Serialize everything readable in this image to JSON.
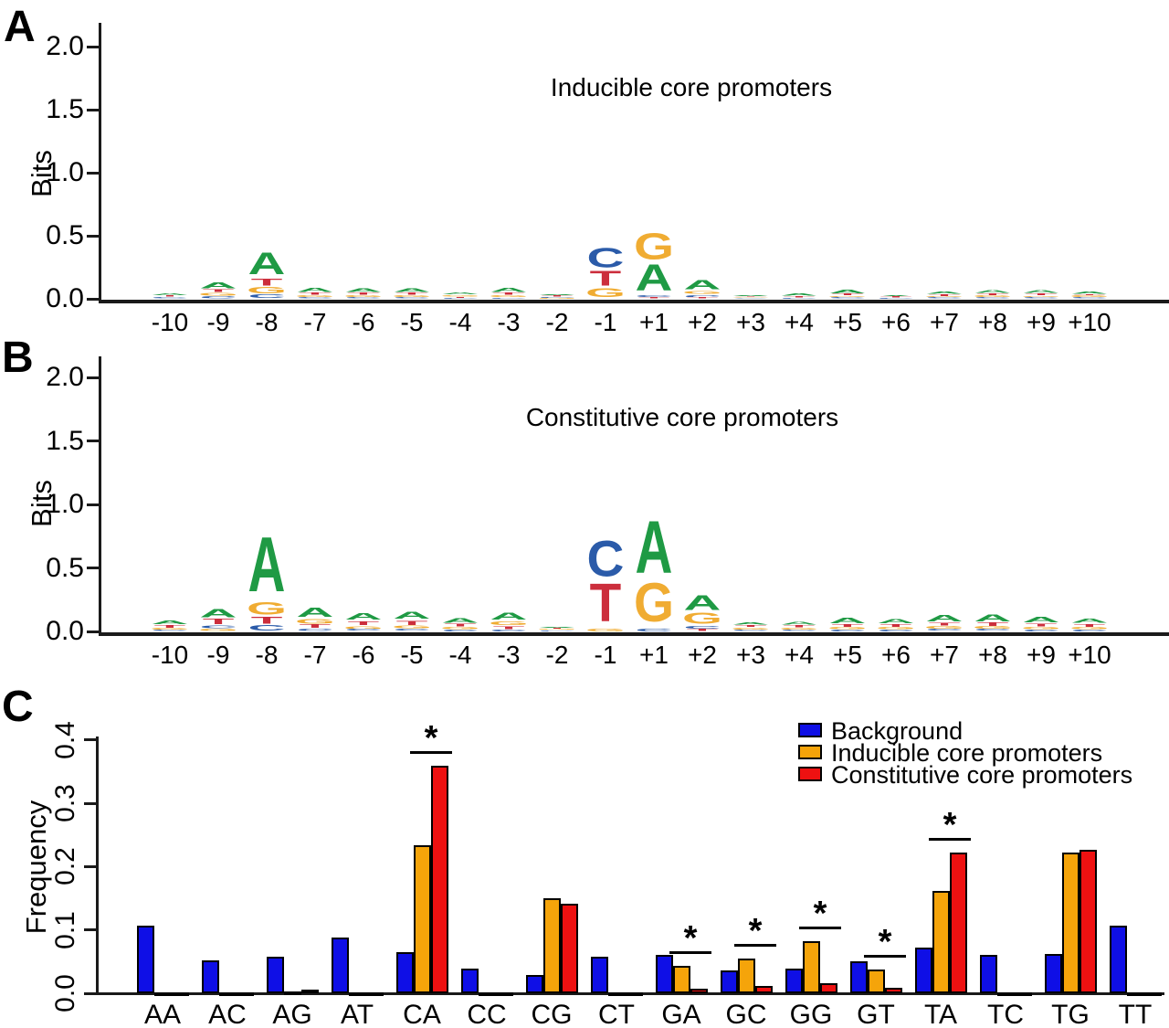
{
  "letter_colors": {
    "A": "#1F9A44",
    "C": "#2B5BA9",
    "G": "#F0AC32",
    "T": "#CC2E3C"
  },
  "chart_data": [
    {
      "panel": "A",
      "type": "sequence_logo",
      "title": "Inducible core promoters",
      "ylabel": "Bits",
      "ylim": [
        0,
        2.0
      ],
      "yticks": [
        "2.0",
        "1.5",
        "1.0",
        "0.5",
        "0.0"
      ],
      "positions": [
        "-10",
        "-9",
        "-8",
        "-7",
        "-6",
        "-5",
        "-4",
        "-3",
        "-2",
        "-1",
        "+1",
        "+2",
        "+3",
        "+4",
        "+5",
        "+6",
        "+7",
        "+8",
        "+9",
        "+10"
      ],
      "stacks": [
        [
          [
            "C",
            0.012
          ],
          [
            "T",
            0.014
          ],
          [
            "A",
            0.016
          ]
        ],
        [
          [
            "C",
            0.02
          ],
          [
            "G",
            0.028
          ],
          [
            "T",
            0.03
          ],
          [
            "A",
            0.055
          ]
        ],
        [
          [
            "C",
            0.035
          ],
          [
            "G",
            0.06
          ],
          [
            "T",
            0.07
          ],
          [
            "A",
            0.21
          ]
        ],
        [
          [
            "C",
            0.012
          ],
          [
            "G",
            0.018
          ],
          [
            "T",
            0.022
          ],
          [
            "A",
            0.038
          ]
        ],
        [
          [
            "C",
            0.012
          ],
          [
            "G",
            0.016
          ],
          [
            "T",
            0.022
          ],
          [
            "A",
            0.036
          ]
        ],
        [
          [
            "C",
            0.012
          ],
          [
            "G",
            0.018
          ],
          [
            "T",
            0.022
          ],
          [
            "A",
            0.036
          ]
        ],
        [
          [
            "C",
            0.008
          ],
          [
            "T",
            0.01
          ],
          [
            "G",
            0.012
          ],
          [
            "A",
            0.018
          ]
        ],
        [
          [
            "C",
            0.01
          ],
          [
            "G",
            0.018
          ],
          [
            "T",
            0.022
          ],
          [
            "A",
            0.04
          ]
        ],
        [
          [
            "G",
            0.008
          ],
          [
            "C",
            0.009
          ],
          [
            "T",
            0.012
          ],
          [
            "A",
            0.008
          ]
        ],
        [
          [
            "G",
            0.085
          ],
          [
            "T",
            0.14
          ],
          [
            "C",
            0.19
          ]
        ],
        [
          [
            "T",
            0.012
          ],
          [
            "C",
            0.018
          ],
          [
            "A",
            0.25
          ],
          [
            "G",
            0.25
          ]
        ],
        [
          [
            "T",
            0.012
          ],
          [
            "C",
            0.02
          ],
          [
            "G",
            0.03
          ],
          [
            "A",
            0.09
          ]
        ],
        [
          [
            "C",
            0.006
          ],
          [
            "G",
            0.007
          ],
          [
            "T",
            0.007
          ],
          [
            "A",
            0.01
          ]
        ],
        [
          [
            "C",
            0.01
          ],
          [
            "T",
            0.012
          ],
          [
            "A",
            0.02
          ]
        ],
        [
          [
            "C",
            0.012
          ],
          [
            "G",
            0.012
          ],
          [
            "T",
            0.018
          ],
          [
            "A",
            0.032
          ]
        ],
        [
          [
            "C",
            0.008
          ],
          [
            "T",
            0.012
          ],
          [
            "A",
            0.012
          ]
        ],
        [
          [
            "C",
            0.012
          ],
          [
            "G",
            0.012
          ],
          [
            "T",
            0.015
          ],
          [
            "A",
            0.022
          ]
        ],
        [
          [
            "C",
            0.012
          ],
          [
            "G",
            0.015
          ],
          [
            "T",
            0.02
          ],
          [
            "A",
            0.028
          ]
        ],
        [
          [
            "C",
            0.012
          ],
          [
            "G",
            0.012
          ],
          [
            "T",
            0.018
          ],
          [
            "A",
            0.028
          ]
        ],
        [
          [
            "C",
            0.012
          ],
          [
            "G",
            0.015
          ],
          [
            "T",
            0.012
          ],
          [
            "A",
            0.022
          ]
        ]
      ]
    },
    {
      "panel": "B",
      "type": "sequence_logo",
      "title": "Constitutive core promoters",
      "ylabel": "Bits",
      "ylim": [
        0,
        2.0
      ],
      "yticks": [
        "2.0",
        "1.5",
        "1.0",
        "0.5",
        "0.0"
      ],
      "positions": [
        "-10",
        "-9",
        "-8",
        "-7",
        "-6",
        "-5",
        "-4",
        "-3",
        "-2",
        "-1",
        "+1",
        "+2",
        "+3",
        "+4",
        "+5",
        "+6",
        "+7",
        "+8",
        "+9",
        "+10"
      ],
      "stacks": [
        [
          [
            "C",
            0.012
          ],
          [
            "G",
            0.016
          ],
          [
            "T",
            0.025
          ],
          [
            "A",
            0.032
          ]
        ],
        [
          [
            "G",
            0.022
          ],
          [
            "C",
            0.028
          ],
          [
            "T",
            0.05
          ],
          [
            "A",
            0.08
          ]
        ],
        [
          [
            "C",
            0.05
          ],
          [
            "T",
            0.07
          ],
          [
            "G",
            0.12
          ],
          [
            "A",
            0.52
          ]
        ],
        [
          [
            "C",
            0.022
          ],
          [
            "T",
            0.035
          ],
          [
            "G",
            0.045
          ],
          [
            "A",
            0.09
          ]
        ],
        [
          [
            "C",
            0.018
          ],
          [
            "G",
            0.028
          ],
          [
            "T",
            0.035
          ],
          [
            "A",
            0.06
          ]
        ],
        [
          [
            "C",
            0.018
          ],
          [
            "G",
            0.03
          ],
          [
            "T",
            0.04
          ],
          [
            "A",
            0.068
          ]
        ],
        [
          [
            "C",
            0.015
          ],
          [
            "G",
            0.02
          ],
          [
            "T",
            0.03
          ],
          [
            "A",
            0.045
          ]
        ],
        [
          [
            "C",
            0.015
          ],
          [
            "T",
            0.03
          ],
          [
            "G",
            0.035
          ],
          [
            "A",
            0.068
          ]
        ],
        [
          [
            "C",
            0.008
          ],
          [
            "G",
            0.01
          ],
          [
            "T",
            0.008
          ],
          [
            "A",
            0.008
          ]
        ],
        [
          [
            "G",
            0.025
          ],
          [
            "T",
            0.36
          ],
          [
            "C",
            0.34
          ]
        ],
        [
          [
            "C",
            0.025
          ],
          [
            "G",
            0.37
          ],
          [
            "A",
            0.5
          ]
        ],
        [
          [
            "T",
            0.02
          ],
          [
            "C",
            0.025
          ],
          [
            "G",
            0.105
          ],
          [
            "A",
            0.14
          ]
        ],
        [
          [
            "C",
            0.012
          ],
          [
            "G",
            0.018
          ],
          [
            "T",
            0.018
          ],
          [
            "A",
            0.022
          ]
        ],
        [
          [
            "C",
            0.012
          ],
          [
            "G",
            0.018
          ],
          [
            "T",
            0.02
          ],
          [
            "A",
            0.028
          ]
        ],
        [
          [
            "C",
            0.015
          ],
          [
            "G",
            0.02
          ],
          [
            "T",
            0.025
          ],
          [
            "A",
            0.05
          ]
        ],
        [
          [
            "C",
            0.015
          ],
          [
            "G",
            0.02
          ],
          [
            "T",
            0.025
          ],
          [
            "A",
            0.04
          ]
        ],
        [
          [
            "C",
            0.018
          ],
          [
            "G",
            0.025
          ],
          [
            "T",
            0.03
          ],
          [
            "A",
            0.06
          ]
        ],
        [
          [
            "C",
            0.018
          ],
          [
            "G",
            0.025
          ],
          [
            "T",
            0.032
          ],
          [
            "A",
            0.065
          ]
        ],
        [
          [
            "C",
            0.015
          ],
          [
            "G",
            0.022
          ],
          [
            "T",
            0.03
          ],
          [
            "A",
            0.05
          ]
        ],
        [
          [
            "C",
            0.015
          ],
          [
            "G",
            0.02
          ],
          [
            "T",
            0.025
          ],
          [
            "A",
            0.038
          ]
        ]
      ]
    },
    {
      "panel": "C",
      "type": "bar",
      "ylabel": "Frequency",
      "ylim": [
        0,
        0.4
      ],
      "yticks": [
        "0.4",
        "0.3",
        "0.2",
        "0.1",
        "0.0"
      ],
      "categories": [
        "AA",
        "AC",
        "AG",
        "AT",
        "CA",
        "CC",
        "CG",
        "CT",
        "GA",
        "GC",
        "GG",
        "GT",
        "TA",
        "TC",
        "TG",
        "TT"
      ],
      "series": [
        {
          "name": "Background",
          "color": "#0F0FE6",
          "values": [
            0.107,
            0.052,
            0.057,
            0.088,
            0.065,
            0.039,
            0.029,
            0.058,
            0.061,
            0.036,
            0.039,
            0.051,
            0.072,
            0.061,
            0.062,
            0.107
          ]
        },
        {
          "name": "Inducible core promoters",
          "color": "#F5A40A",
          "values": [
            0.002,
            0.002,
            0.003,
            0.002,
            0.234,
            0.002,
            0.15,
            0.002,
            0.043,
            0.055,
            0.082,
            0.038,
            0.161,
            0.002,
            0.222,
            0.002
          ]
        },
        {
          "name": "Constitutive core promoters",
          "color": "#EE1111",
          "values": [
            0.002,
            0.002,
            0.006,
            0.002,
            0.359,
            0.002,
            0.141,
            0.002,
            0.007,
            0.012,
            0.016,
            0.008,
            0.222,
            0.002,
            0.226,
            0.002
          ]
        }
      ],
      "significant_categories": [
        "CA",
        "GA",
        "GC",
        "GG",
        "GT",
        "TA"
      ],
      "significance_marker": "*",
      "legend_position": "top-right"
    }
  ]
}
